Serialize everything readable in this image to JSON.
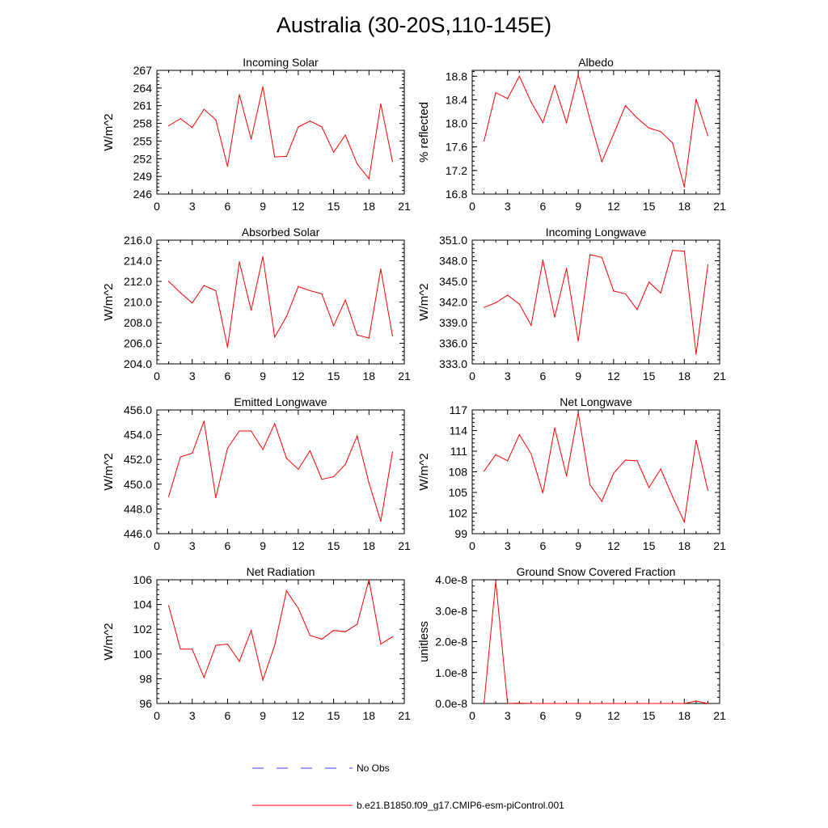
{
  "title": "Australia (30-20S,110-145E)",
  "colors": {
    "model_line": "#ff0000",
    "obs_line": "#3c3cff",
    "axes": "#000000"
  },
  "legend": [
    {
      "label": "No Obs",
      "color": "#3c3cff",
      "style": "dashed"
    },
    {
      "label": "b.e21.B1850.f09_g17.CMIP6-esm-piControl.001",
      "color": "#ff0000",
      "style": "solid"
    }
  ],
  "chart_data": [
    {
      "type": "line",
      "title": "Incoming Solar",
      "ylabel": "W/m^2",
      "xlim": [
        0,
        21
      ],
      "xticks": [
        "0",
        "3",
        "6",
        "9",
        "12",
        "15",
        "18",
        "21"
      ],
      "ylim": [
        246,
        267
      ],
      "yticks": [
        "246",
        "249",
        "252",
        "255",
        "258",
        "261",
        "264",
        "267"
      ],
      "series": [
        {
          "x": [
            1,
            2,
            3,
            4,
            5,
            6,
            7,
            8,
            9,
            10,
            11,
            12,
            13,
            14,
            15,
            16,
            17,
            18,
            19,
            20
          ],
          "values": [
            257.6,
            258.8,
            257.3,
            260.4,
            258.6,
            250.7,
            262.9,
            255.3,
            264.2,
            252.3,
            252.4,
            257.4,
            258.4,
            257.4,
            253.1,
            256.0,
            251.1,
            248.6,
            261.3,
            251.5
          ]
        }
      ]
    },
    {
      "type": "line",
      "title": "Albedo",
      "ylabel": "% reflected",
      "xlim": [
        0,
        21
      ],
      "xticks": [
        "0",
        "3",
        "6",
        "9",
        "12",
        "15",
        "18",
        "21"
      ],
      "ylim": [
        16.8,
        18.9
      ],
      "yticks": [
        "16.8",
        "17.2",
        "17.6",
        "18.0",
        "18.4",
        "18.8"
      ],
      "series": [
        {
          "x": [
            1,
            2,
            3,
            4,
            5,
            6,
            7,
            8,
            9,
            10,
            11,
            12,
            13,
            14,
            15,
            16,
            17,
            18,
            19,
            20
          ],
          "values": [
            17.7,
            18.52,
            18.42,
            18.8,
            18.36,
            18.01,
            18.64,
            18.01,
            18.82,
            18.06,
            17.35,
            17.82,
            18.3,
            18.09,
            17.92,
            17.86,
            17.67,
            16.92,
            18.41,
            17.79
          ]
        }
      ]
    },
    {
      "type": "line",
      "title": "Absorbed Solar",
      "ylabel": "W/m^2",
      "xlim": [
        0,
        21
      ],
      "xticks": [
        "0",
        "3",
        "6",
        "9",
        "12",
        "15",
        "18",
        "21"
      ],
      "ylim": [
        204,
        216
      ],
      "yticks": [
        "204.0",
        "206.0",
        "208.0",
        "210.0",
        "212.0",
        "214.0",
        "216.0"
      ],
      "series": [
        {
          "x": [
            1,
            2,
            3,
            4,
            5,
            6,
            7,
            8,
            9,
            10,
            11,
            12,
            13,
            14,
            15,
            16,
            17,
            18,
            19,
            20
          ],
          "values": [
            212.0,
            210.9,
            209.9,
            211.6,
            211.1,
            205.6,
            213.9,
            209.2,
            214.4,
            206.6,
            208.6,
            211.5,
            211.1,
            210.8,
            207.7,
            210.2,
            206.8,
            206.5,
            213.2,
            206.7
          ]
        }
      ]
    },
    {
      "type": "line",
      "title": "Incoming Longwave",
      "ylabel": "W/m^2",
      "xlim": [
        0,
        21
      ],
      "xticks": [
        "0",
        "3",
        "6",
        "9",
        "12",
        "15",
        "18",
        "21"
      ],
      "ylim": [
        333,
        351
      ],
      "yticks": [
        "333.0",
        "336.0",
        "339.0",
        "342.0",
        "345.0",
        "348.0",
        "351.0"
      ],
      "series": [
        {
          "x": [
            1,
            2,
            3,
            4,
            5,
            6,
            7,
            8,
            9,
            10,
            11,
            12,
            13,
            14,
            15,
            16,
            17,
            18,
            19,
            20
          ],
          "values": [
            341.2,
            341.9,
            343.0,
            341.7,
            338.6,
            348.1,
            339.8,
            346.9,
            336.3,
            348.9,
            348.5,
            343.6,
            343.2,
            340.9,
            344.9,
            343.3,
            349.5,
            349.4,
            334.4,
            347.4
          ]
        }
      ]
    },
    {
      "type": "line",
      "title": "Emitted Longwave",
      "ylabel": "W/m^2",
      "xlim": [
        0,
        21
      ],
      "xticks": [
        "0",
        "3",
        "6",
        "9",
        "12",
        "15",
        "18",
        "21"
      ],
      "ylim": [
        446,
        456
      ],
      "yticks": [
        "446.0",
        "448.0",
        "450.0",
        "452.0",
        "454.0",
        "456.0"
      ],
      "series": [
        {
          "x": [
            1,
            2,
            3,
            4,
            5,
            6,
            7,
            8,
            9,
            10,
            11,
            12,
            13,
            14,
            15,
            16,
            17,
            18,
            19,
            20
          ],
          "values": [
            449.0,
            452.2,
            452.5,
            455.1,
            448.9,
            452.9,
            454.3,
            454.3,
            452.8,
            454.9,
            452.1,
            451.2,
            452.7,
            450.4,
            450.6,
            451.6,
            453.9,
            450.1,
            447.0,
            452.6
          ]
        }
      ]
    },
    {
      "type": "line",
      "title": "Net Longwave",
      "ylabel": "W/m^2",
      "xlim": [
        0,
        21
      ],
      "xticks": [
        "0",
        "3",
        "6",
        "9",
        "12",
        "15",
        "18",
        "21"
      ],
      "ylim": [
        99,
        117
      ],
      "yticks": [
        "99",
        "102",
        "105",
        "108",
        "111",
        "114",
        "117"
      ],
      "series": [
        {
          "x": [
            1,
            2,
            3,
            4,
            5,
            6,
            7,
            8,
            9,
            10,
            11,
            12,
            13,
            14,
            15,
            16,
            17,
            18,
            19,
            20
          ],
          "values": [
            108.1,
            110.5,
            109.6,
            113.4,
            110.6,
            104.9,
            114.4,
            107.4,
            116.6,
            106.1,
            103.7,
            107.8,
            109.7,
            109.6,
            105.7,
            108.4,
            104.4,
            100.7,
            112.6,
            105.3
          ]
        }
      ]
    },
    {
      "type": "line",
      "title": "Net Radiation",
      "ylabel": "W/m^2",
      "xlim": [
        0,
        21
      ],
      "xticks": [
        "0",
        "3",
        "6",
        "9",
        "12",
        "15",
        "18",
        "21"
      ],
      "ylim": [
        96,
        106
      ],
      "yticks": [
        "96",
        "98",
        "100",
        "102",
        "104",
        "106"
      ],
      "series": [
        {
          "x": [
            1,
            2,
            3,
            4,
            5,
            6,
            7,
            8,
            9,
            10,
            11,
            12,
            13,
            14,
            15,
            16,
            17,
            18,
            19,
            20
          ],
          "values": [
            103.9,
            100.4,
            100.4,
            98.1,
            100.7,
            100.8,
            99.4,
            101.9,
            97.9,
            100.7,
            105.1,
            103.7,
            101.5,
            101.2,
            101.9,
            101.8,
            102.4,
            106.0,
            100.8,
            101.4
          ]
        }
      ]
    },
    {
      "type": "line",
      "title": "Ground Snow Covered Fraction",
      "ylabel": "unitless",
      "xlim": [
        0,
        21
      ],
      "xticks": [
        "0",
        "3",
        "6",
        "9",
        "12",
        "15",
        "18",
        "21"
      ],
      "ylim": [
        0,
        4e-08
      ],
      "yticks": [
        "0.0e-8",
        "1.0e-8",
        "2.0e-8",
        "3.0e-8",
        "4.0e-8"
      ],
      "series": [
        {
          "x": [
            1,
            2,
            3,
            4,
            5,
            6,
            7,
            8,
            9,
            10,
            11,
            12,
            13,
            14,
            15,
            16,
            17,
            18,
            19,
            20
          ],
          "values": [
            0,
            3.95e-08,
            0,
            1e-10,
            0,
            0,
            0,
            0,
            0,
            0,
            0,
            0,
            0,
            0,
            0,
            0,
            0,
            0,
            8e-10,
            0
          ]
        }
      ]
    }
  ]
}
